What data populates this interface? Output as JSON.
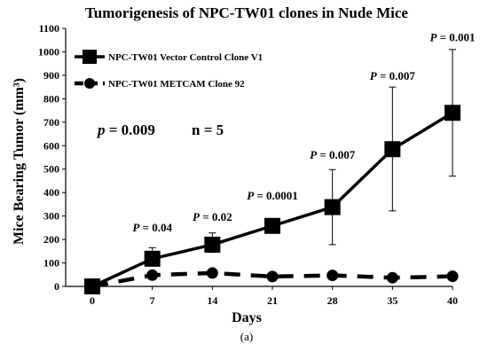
{
  "chart_data": {
    "type": "line",
    "title": "Tumorigenesis of NPC-TW01 clones in Nude Mice",
    "xlabel": "Days",
    "ylabel": "Mice Bearing Tumor (mm³)",
    "ylim": [
      0,
      1100
    ],
    "yticks": [
      0,
      100,
      200,
      300,
      400,
      500,
      600,
      700,
      800,
      900,
      1000,
      1100
    ],
    "categories": [
      "0",
      "7",
      "14",
      "21",
      "28",
      "35",
      "40"
    ],
    "grid": false,
    "legend_position": "top-left",
    "series": [
      {
        "name": "NPC-TW01 Vector Control Clone V1",
        "values": [
          0,
          118,
          178,
          258,
          338,
          585,
          740
        ],
        "error_upper": [
          null,
          165,
          228,
          null,
          498,
          850,
          1010
        ],
        "error_lower": [
          null,
          88,
          145,
          null,
          178,
          322,
          470
        ],
        "line_style": "solid",
        "marker": "square",
        "color": "#000000"
      },
      {
        "name": "NPC-TW01 METCAM Clone 92",
        "values": [
          0,
          48,
          57,
          42,
          47,
          37,
          43
        ],
        "line_style": "dashed",
        "marker": "circle",
        "color": "#000000"
      }
    ],
    "annotations": [
      {
        "p_label": "P",
        "text": " = 0.04",
        "category": "7",
        "y": 235
      },
      {
        "p_label": "P",
        "text": " = 0.02",
        "category": "14",
        "y": 280
      },
      {
        "p_label": "P",
        "text": " = 0.0001",
        "category": "21",
        "y": 370
      },
      {
        "p_label": "P",
        "text": " = 0.007",
        "category": "28",
        "y": 545
      },
      {
        "p_label": "P",
        "text": " = 0.007",
        "category": "35",
        "y": 880
      },
      {
        "p_label": "P",
        "text": " = 0.001",
        "category": "40",
        "y": 1045
      }
    ],
    "summary_stat": {
      "p_label": "p",
      "p_text": " = 0.009",
      "n_text": "n = 5"
    },
    "caption": "(a)"
  }
}
